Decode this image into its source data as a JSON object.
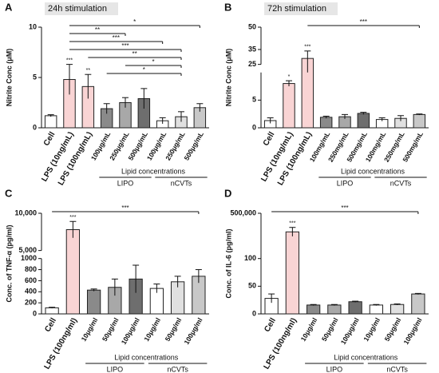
{
  "chart_data": [
    {
      "type": "bar",
      "panel": "A",
      "title": "24h stimulation",
      "y_label": "Nitrite Conc (μM)",
      "categories": [
        "Cell",
        "LPS (10ng/mL)",
        "LPS (100ng/mL)",
        "100μg/mL",
        "250μg/mL",
        "500μg/mL",
        "100μg/mL",
        "250μg/mL",
        "500μg/mL"
      ],
      "values": [
        1.2,
        4.8,
        4.1,
        1.9,
        2.5,
        2.9,
        0.7,
        1.1,
        2.0
      ],
      "errors": [
        0.1,
        1.5,
        1.2,
        0.5,
        0.5,
        1.0,
        0.3,
        0.5,
        0.4
      ],
      "colors": [
        "#ffffff",
        "#f9d4d4",
        "#f9d4d4",
        "#8a8a8a",
        "#a8a8a8",
        "#6e6e6e",
        "#ffffff",
        "#e0e0e0",
        "#c8c8c8"
      ],
      "stars": [
        null,
        "***",
        "**",
        null,
        null,
        null,
        null,
        null,
        null
      ],
      "comparisons": [
        {
          "from": 1,
          "to": 8,
          "label": "*"
        },
        {
          "from": 1,
          "to": 4,
          "label": "**"
        },
        {
          "from": 1,
          "to": 6,
          "label": "***"
        },
        {
          "from": 1,
          "to": 7,
          "label": "***"
        },
        {
          "from": 2,
          "to": 7,
          "label": "**"
        },
        {
          "from": 4,
          "to": 7,
          "label": "*"
        },
        {
          "from": 3,
          "to": 7,
          "label": "*"
        }
      ],
      "group_label": "Lipid concentrations",
      "groups": [
        "LIPO",
        "nCVTs"
      ],
      "ylim": [
        0,
        10
      ],
      "yticks": [
        0,
        5,
        10
      ]
    },
    {
      "type": "bar",
      "panel": "B",
      "title": "72h stimulation",
      "y_label": "Nitrite Conc (μM)",
      "categories": [
        "Cell",
        "LPS (10ng/mL)",
        "LPS (100ng/mL)",
        "100mg/mL",
        "250mg/mL",
        "500mg/mL",
        "100mg/mL",
        "250mg/mL",
        "500mg/mL"
      ],
      "values": [
        1.3,
        8,
        29,
        1.9,
        2.0,
        2.6,
        1.5,
        1.7,
        2.4
      ],
      "errors": [
        0.5,
        0.5,
        5,
        0.2,
        0.4,
        0.2,
        0.3,
        0.5,
        0.1
      ],
      "colors": [
        "#ffffff",
        "#f9d4d4",
        "#f9d4d4",
        "#8a8a8a",
        "#a8a8a8",
        "#6e6e6e",
        "#ffffff",
        "#e0e0e0",
        "#c8c8c8"
      ],
      "stars": [
        null,
        "*",
        "***",
        null,
        null,
        null,
        null,
        null,
        null
      ],
      "comparisons": [
        {
          "from": 2,
          "to": 8,
          "label": "***"
        }
      ],
      "group_label": "Lipid concentrations",
      "groups": [
        "LIPO",
        "nCVTs"
      ],
      "ylim": [
        0,
        50
      ],
      "axis_break": [
        10,
        25
      ],
      "yticks": [
        0,
        5,
        25,
        35,
        50
      ]
    },
    {
      "type": "bar",
      "panel": "C",
      "y_label": "Conc. of TNF-α (pg/ml)",
      "categories": [
        "Cell",
        "LPS (100ng/ml)",
        "10μg/ml",
        "50μg/ml",
        "100μg/ml",
        "10μg/ml",
        "50μg/ml",
        "100μg/ml"
      ],
      "values": [
        110,
        7800,
        430,
        480,
        630,
        460,
        580,
        680
      ],
      "errors": [
        10,
        1100,
        20,
        150,
        250,
        80,
        100,
        120
      ],
      "colors": [
        "#ffffff",
        "#f9d4d4",
        "#8a8a8a",
        "#a8a8a8",
        "#6e6e6e",
        "#ffffff",
        "#e0e0e0",
        "#c8c8c8"
      ],
      "stars": [
        null,
        "***",
        null,
        null,
        null,
        null,
        null,
        null
      ],
      "comparisons": [
        {
          "from": 0,
          "to": 7,
          "label": "***"
        }
      ],
      "group_label": "Lipid concentrations",
      "groups": [
        "LIPO",
        "nCVTs"
      ],
      "ylim": [
        0,
        10000
      ],
      "axis_break": [
        1000,
        5000
      ],
      "yticks": [
        0,
        200,
        400,
        600,
        800,
        1000,
        {
          "value": 5000,
          "label": "5,000"
        },
        {
          "value": 10000,
          "label": "10,000"
        }
      ]
    },
    {
      "type": "bar",
      "panel": "D",
      "y_label": "Conc. of IL-6 (pg/ml)",
      "categories": [
        "Cell",
        "LPS (100ng/ml)",
        "10μg/ml",
        "50μg/ml",
        "100μg/ml",
        "10μg/ml",
        "50μg/ml",
        "100μg/ml"
      ],
      "values": [
        28,
        250000,
        16,
        16,
        22,
        16,
        17,
        36
      ],
      "errors": [
        8,
        60000,
        1,
        1,
        1,
        1,
        1,
        1
      ],
      "colors": [
        "#ffffff",
        "#f9d4d4",
        "#8a8a8a",
        "#a8a8a8",
        "#6e6e6e",
        "#ffffff",
        "#e0e0e0",
        "#c8c8c8"
      ],
      "stars": [
        null,
        "***",
        null,
        null,
        null,
        null,
        null,
        null
      ],
      "comparisons": [
        {
          "from": 0,
          "to": 7,
          "label": "***"
        }
      ],
      "group_label": "Lipid concentrations",
      "groups": [
        "LIPO",
        "nCVTs"
      ],
      "ylim": [
        0,
        500000
      ],
      "axis_break": [
        100,
        100
      ],
      "yticks": [
        0,
        50,
        100,
        {
          "value": 500000,
          "label": "500,000"
        }
      ]
    }
  ]
}
